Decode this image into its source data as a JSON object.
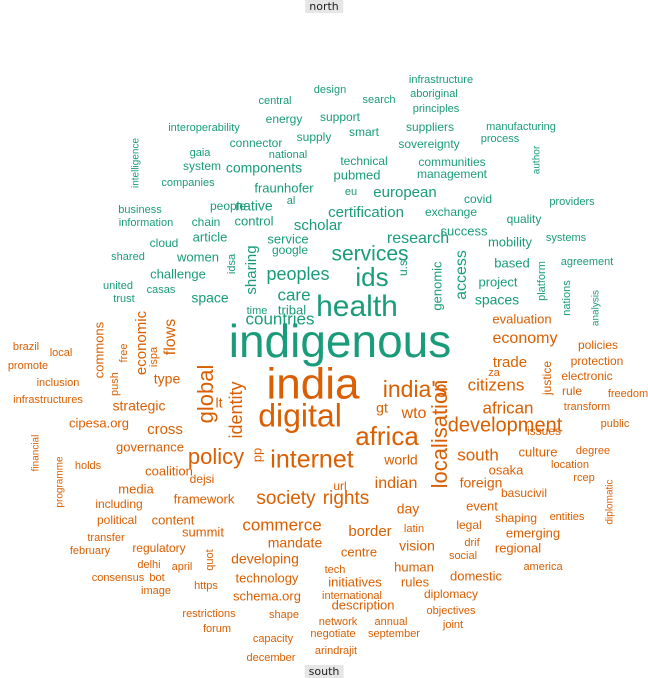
{
  "chart_data": {
    "type": "wordcloud",
    "top_label": "north",
    "bottom_label": "south",
    "colors": {
      "north": "#1a9c7a",
      "south": "#d95f02"
    },
    "words": [
      {
        "text": "indigenous",
        "group": "north",
        "weight": 46
      },
      {
        "text": "health",
        "group": "north",
        "weight": 30
      },
      {
        "text": "ids",
        "group": "north",
        "weight": 26
      },
      {
        "text": "services",
        "group": "north",
        "weight": 21
      },
      {
        "text": "peoples",
        "group": "north",
        "weight": 18
      },
      {
        "text": "care",
        "group": "north",
        "weight": 17
      },
      {
        "text": "countries",
        "group": "north",
        "weight": 17
      },
      {
        "text": "research",
        "group": "north",
        "weight": 16
      },
      {
        "text": "access",
        "group": "north",
        "weight": 16
      },
      {
        "text": "sharing",
        "group": "north",
        "weight": 15
      },
      {
        "text": "european",
        "group": "north",
        "weight": 15
      },
      {
        "text": "certification",
        "group": "north",
        "weight": 15
      },
      {
        "text": "scholar",
        "group": "north",
        "weight": 15
      },
      {
        "text": "native",
        "group": "north",
        "weight": 14
      },
      {
        "text": "spaces",
        "group": "north",
        "weight": 14
      },
      {
        "text": "space",
        "group": "north",
        "weight": 14
      },
      {
        "text": "components",
        "group": "north",
        "weight": 14
      },
      {
        "text": "fraunhofer",
        "group": "north",
        "weight": 13
      },
      {
        "text": "pubmed",
        "group": "north",
        "weight": 13
      },
      {
        "text": "success",
        "group": "north",
        "weight": 13
      },
      {
        "text": "service",
        "group": "north",
        "weight": 13
      },
      {
        "text": "genomic",
        "group": "north",
        "weight": 13
      },
      {
        "text": "tribal",
        "group": "north",
        "weight": 13
      },
      {
        "text": "challenge",
        "group": "north",
        "weight": 13
      },
      {
        "text": "article",
        "group": "north",
        "weight": 13
      },
      {
        "text": "women",
        "group": "north",
        "weight": 13
      },
      {
        "text": "control",
        "group": "north",
        "weight": 13
      },
      {
        "text": "project",
        "group": "north",
        "weight": 13
      },
      {
        "text": "based",
        "group": "north",
        "weight": 13
      },
      {
        "text": "mobility",
        "group": "north",
        "weight": 13
      },
      {
        "text": "quality",
        "group": "north",
        "weight": 12
      },
      {
        "text": "exchange",
        "group": "north",
        "weight": 12
      },
      {
        "text": "communities",
        "group": "north",
        "weight": 12
      },
      {
        "text": "technical",
        "group": "north",
        "weight": 12
      },
      {
        "text": "management",
        "group": "north",
        "weight": 12
      },
      {
        "text": "covid",
        "group": "north",
        "weight": 12
      },
      {
        "text": "sovereignty",
        "group": "north",
        "weight": 12
      },
      {
        "text": "suppliers",
        "group": "north",
        "weight": 12
      },
      {
        "text": "supply",
        "group": "north",
        "weight": 12
      },
      {
        "text": "smart",
        "group": "north",
        "weight": 12
      },
      {
        "text": "support",
        "group": "north",
        "weight": 12
      },
      {
        "text": "connector",
        "group": "north",
        "weight": 12
      },
      {
        "text": "energy",
        "group": "north",
        "weight": 12
      },
      {
        "text": "national",
        "group": "north",
        "weight": 11
      },
      {
        "text": "interoperability",
        "group": "north",
        "weight": 11
      },
      {
        "text": "system",
        "group": "north",
        "weight": 12
      },
      {
        "text": "gaia",
        "group": "north",
        "weight": 11
      },
      {
        "text": "companies",
        "group": "north",
        "weight": 11
      },
      {
        "text": "people",
        "group": "north",
        "weight": 12
      },
      {
        "text": "chain",
        "group": "north",
        "weight": 12
      },
      {
        "text": "business",
        "group": "north",
        "weight": 11
      },
      {
        "text": "information",
        "group": "north",
        "weight": 11
      },
      {
        "text": "cloud",
        "group": "north",
        "weight": 12
      },
      {
        "text": "shared",
        "group": "north",
        "weight": 11
      },
      {
        "text": "united",
        "group": "north",
        "weight": 11
      },
      {
        "text": "trust",
        "group": "north",
        "weight": 11
      },
      {
        "text": "casas",
        "group": "north",
        "weight": 11
      },
      {
        "text": "google",
        "group": "north",
        "weight": 12
      },
      {
        "text": "idsa",
        "group": "north",
        "weight": 11
      },
      {
        "text": "time",
        "group": "north",
        "weight": 11
      },
      {
        "text": "u.s",
        "group": "north",
        "weight": 12
      },
      {
        "text": "platform",
        "group": "north",
        "weight": 11
      },
      {
        "text": "nations",
        "group": "north",
        "weight": 11
      },
      {
        "text": "systems",
        "group": "north",
        "weight": 11
      },
      {
        "text": "providers",
        "group": "north",
        "weight": 11
      },
      {
        "text": "agreement",
        "group": "north",
        "weight": 11
      },
      {
        "text": "analysis",
        "group": "north",
        "weight": 10
      },
      {
        "text": "intelligence",
        "group": "north",
        "weight": 10
      },
      {
        "text": "central",
        "group": "north",
        "weight": 11
      },
      {
        "text": "design",
        "group": "north",
        "weight": 11
      },
      {
        "text": "search",
        "group": "north",
        "weight": 11
      },
      {
        "text": "infrastructure",
        "group": "north",
        "weight": 11
      },
      {
        "text": "aboriginal",
        "group": "north",
        "weight": 11
      },
      {
        "text": "principles",
        "group": "north",
        "weight": 11
      },
      {
        "text": "manufacturing",
        "group": "north",
        "weight": 11
      },
      {
        "text": "process",
        "group": "north",
        "weight": 11
      },
      {
        "text": "author",
        "group": "north",
        "weight": 10
      },
      {
        "text": "eu",
        "group": "north",
        "weight": 11
      },
      {
        "text": "al",
        "group": "north",
        "weight": 11
      },
      {
        "text": "india",
        "group": "south",
        "weight": 44
      },
      {
        "text": "digital",
        "group": "south",
        "weight": 32
      },
      {
        "text": "africa",
        "group": "south",
        "weight": 26
      },
      {
        "text": "internet",
        "group": "south",
        "weight": 25
      },
      {
        "text": "india's",
        "group": "south",
        "weight": 23
      },
      {
        "text": "global",
        "group": "south",
        "weight": 22
      },
      {
        "text": "policy",
        "group": "south",
        "weight": 22
      },
      {
        "text": "localisation",
        "group": "south",
        "weight": 22
      },
      {
        "text": "development",
        "group": "south",
        "weight": 20
      },
      {
        "text": "rights",
        "group": "south",
        "weight": 19
      },
      {
        "text": "society",
        "group": "south",
        "weight": 19
      },
      {
        "text": "identity",
        "group": "south",
        "weight": 18
      },
      {
        "text": "citizens",
        "group": "south",
        "weight": 17
      },
      {
        "text": "african",
        "group": "south",
        "weight": 17
      },
      {
        "text": "south",
        "group": "south",
        "weight": 17
      },
      {
        "text": "commerce",
        "group": "south",
        "weight": 17
      },
      {
        "text": "economy",
        "group": "south",
        "weight": 16
      },
      {
        "text": "wto",
        "group": "south",
        "weight": 16
      },
      {
        "text": "indian",
        "group": "south",
        "weight": 16
      },
      {
        "text": "flows",
        "group": "south",
        "weight": 16
      },
      {
        "text": "economic",
        "group": "south",
        "weight": 15
      },
      {
        "text": "trade",
        "group": "south",
        "weight": 15
      },
      {
        "text": "border",
        "group": "south",
        "weight": 15
      },
      {
        "text": "cross",
        "group": "south",
        "weight": 15
      },
      {
        "text": "strategic",
        "group": "south",
        "weight": 14
      },
      {
        "text": "world",
        "group": "south",
        "weight": 14
      },
      {
        "text": "type",
        "group": "south",
        "weight": 14
      },
      {
        "text": "foreign",
        "group": "south",
        "weight": 14
      },
      {
        "text": "day",
        "group": "south",
        "weight": 14
      },
      {
        "text": "vision",
        "group": "south",
        "weight": 14
      },
      {
        "text": "developing",
        "group": "south",
        "weight": 14
      },
      {
        "text": "mandate",
        "group": "south",
        "weight": 14
      },
      {
        "text": "gt",
        "group": "south",
        "weight": 14
      },
      {
        "text": "lt",
        "group": "south",
        "weight": 14
      },
      {
        "text": "pp",
        "group": "south",
        "weight": 13
      },
      {
        "text": "culture",
        "group": "south",
        "weight": 13
      },
      {
        "text": "event",
        "group": "south",
        "weight": 13
      },
      {
        "text": "governance",
        "group": "south",
        "weight": 13
      },
      {
        "text": "coalition",
        "group": "south",
        "weight": 13
      },
      {
        "text": "framework",
        "group": "south",
        "weight": 13
      },
      {
        "text": "content",
        "group": "south",
        "weight": 13
      },
      {
        "text": "summit",
        "group": "south",
        "weight": 13
      },
      {
        "text": "technology",
        "group": "south",
        "weight": 13
      },
      {
        "text": "centre",
        "group": "south",
        "weight": 13
      },
      {
        "text": "initiatives",
        "group": "south",
        "weight": 13
      },
      {
        "text": "human",
        "group": "south",
        "weight": 13
      },
      {
        "text": "rules",
        "group": "south",
        "weight": 13
      },
      {
        "text": "domestic",
        "group": "south",
        "weight": 13
      },
      {
        "text": "osaka",
        "group": "south",
        "weight": 13
      },
      {
        "text": "emerging",
        "group": "south",
        "weight": 13
      },
      {
        "text": "regional",
        "group": "south",
        "weight": 13
      },
      {
        "text": "evaluation",
        "group": "south",
        "weight": 13
      },
      {
        "text": "commons",
        "group": "south",
        "weight": 13
      },
      {
        "text": "justice",
        "group": "south",
        "weight": 12
      },
      {
        "text": "cipesa.org",
        "group": "south",
        "weight": 13
      },
      {
        "text": "media",
        "group": "south",
        "weight": 13
      },
      {
        "text": "schema.org",
        "group": "south",
        "weight": 13
      },
      {
        "text": "description",
        "group": "south",
        "weight": 13
      },
      {
        "text": "diplomacy",
        "group": "south",
        "weight": 12
      },
      {
        "text": "url",
        "group": "south",
        "weight": 12
      },
      {
        "text": "dejsi",
        "group": "south",
        "weight": 12
      },
      {
        "text": "including",
        "group": "south",
        "weight": 12
      },
      {
        "text": "political",
        "group": "south",
        "weight": 12
      },
      {
        "text": "regulatory",
        "group": "south",
        "weight": 12
      },
      {
        "text": "shaping",
        "group": "south",
        "weight": 12
      },
      {
        "text": "legal",
        "group": "south",
        "weight": 12
      },
      {
        "text": "basucivil",
        "group": "south",
        "weight": 12
      },
      {
        "text": "issues",
        "group": "south",
        "weight": 12
      },
      {
        "text": "rule",
        "group": "south",
        "weight": 12
      },
      {
        "text": "electronic",
        "group": "south",
        "weight": 12
      },
      {
        "text": "protection",
        "group": "south",
        "weight": 12
      },
      {
        "text": "policies",
        "group": "south",
        "weight": 12
      },
      {
        "text": "transform",
        "group": "south",
        "weight": 11
      },
      {
        "text": "public",
        "group": "south",
        "weight": 11
      },
      {
        "text": "freedom",
        "group": "south",
        "weight": 11
      },
      {
        "text": "degree",
        "group": "south",
        "weight": 11
      },
      {
        "text": "location",
        "group": "south",
        "weight": 11
      },
      {
        "text": "rcep",
        "group": "south",
        "weight": 11
      },
      {
        "text": "entities",
        "group": "south",
        "weight": 11
      },
      {
        "text": "diplomatic",
        "group": "south",
        "weight": 10
      },
      {
        "text": "america",
        "group": "south",
        "weight": 11
      },
      {
        "text": "za",
        "group": "south",
        "weight": 11
      },
      {
        "text": "brazil",
        "group": "south",
        "weight": 11
      },
      {
        "text": "local",
        "group": "south",
        "weight": 11
      },
      {
        "text": "promote",
        "group": "south",
        "weight": 11
      },
      {
        "text": "inclusion",
        "group": "south",
        "weight": 11
      },
      {
        "text": "infrastructures",
        "group": "south",
        "weight": 11
      },
      {
        "text": "push",
        "group": "south",
        "weight": 11
      },
      {
        "text": "free",
        "group": "south",
        "weight": 11
      },
      {
        "text": "ispa",
        "group": "south",
        "weight": 11
      },
      {
        "text": "financial",
        "group": "south",
        "weight": 10
      },
      {
        "text": "programme",
        "group": "south",
        "weight": 10
      },
      {
        "text": "holds",
        "group": "south",
        "weight": 11
      },
      {
        "text": "transfer",
        "group": "south",
        "weight": 11
      },
      {
        "text": "february",
        "group": "south",
        "weight": 11
      },
      {
        "text": "consensus",
        "group": "south",
        "weight": 11
      },
      {
        "text": "delhi",
        "group": "south",
        "weight": 11
      },
      {
        "text": "april",
        "group": "south",
        "weight": 11
      },
      {
        "text": "bot",
        "group": "south",
        "weight": 11
      },
      {
        "text": "quot",
        "group": "south",
        "weight": 11
      },
      {
        "text": "image",
        "group": "south",
        "weight": 11
      },
      {
        "text": "https",
        "group": "south",
        "weight": 11
      },
      {
        "text": "restrictions",
        "group": "south",
        "weight": 11
      },
      {
        "text": "forum",
        "group": "south",
        "weight": 11
      },
      {
        "text": "shape",
        "group": "south",
        "weight": 11
      },
      {
        "text": "capacity",
        "group": "south",
        "weight": 11
      },
      {
        "text": "december",
        "group": "south",
        "weight": 11
      },
      {
        "text": "international",
        "group": "south",
        "weight": 11
      },
      {
        "text": "network",
        "group": "south",
        "weight": 11
      },
      {
        "text": "negotiate",
        "group": "south",
        "weight": 11
      },
      {
        "text": "september",
        "group": "south",
        "weight": 11
      },
      {
        "text": "arindrajit",
        "group": "south",
        "weight": 11
      },
      {
        "text": "annual",
        "group": "south",
        "weight": 11
      },
      {
        "text": "objectives",
        "group": "south",
        "weight": 11
      },
      {
        "text": "joint",
        "group": "south",
        "weight": 11
      },
      {
        "text": "tech",
        "group": "south",
        "weight": 11
      },
      {
        "text": "social",
        "group": "south",
        "weight": 11
      },
      {
        "text": "drif",
        "group": "south",
        "weight": 11
      },
      {
        "text": "latin",
        "group": "south",
        "weight": 11
      }
    ]
  }
}
